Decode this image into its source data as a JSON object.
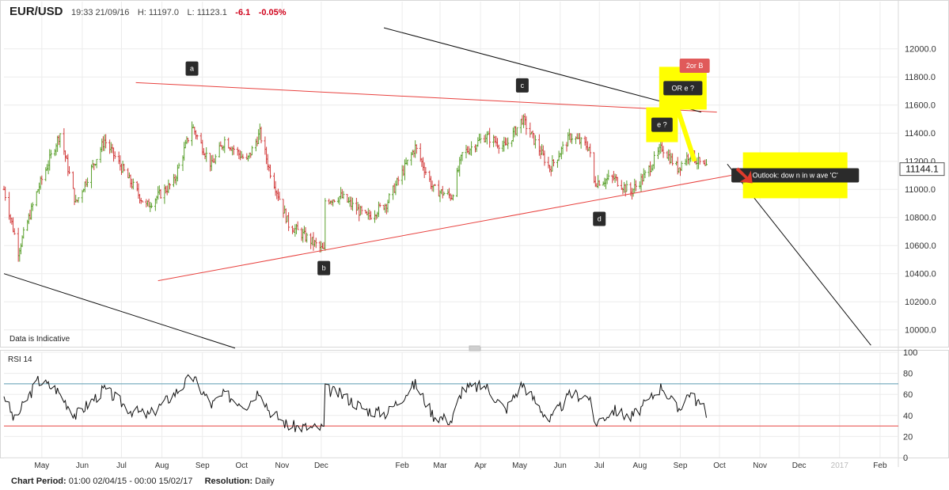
{
  "header": {
    "symbol": "EUR/USD",
    "time": "19:33 21/09/16",
    "high": "H: 11197.0",
    "low": "L: 11123.1",
    "change": "-6.1",
    "change_pct": "-0.05%"
  },
  "footer": {
    "period_label": "Chart Period:",
    "period_value": "01:00 02/04/15 - 00:00 15/02/17",
    "resolution_label": "Resolution:",
    "resolution_value": "Daily"
  },
  "colors": {
    "up": "#5aa02c",
    "down": "#d23c3c",
    "trend_red": "#e8423f",
    "trend_black": "#111111",
    "highlight": "#ffff00",
    "rsi_upper": "#5b9bb0",
    "rsi_lower": "#e8423f",
    "grid": "#ececec"
  },
  "chart_data": [
    {
      "type": "candlestick",
      "notice": "Data is Indicative",
      "last_price": "11144.1",
      "yticks": [
        "10000.0",
        "10200.0",
        "10400.0",
        "10600.0",
        "10800.0",
        "11000.0",
        "11200.0",
        "11400.0",
        "11600.0",
        "11800.0",
        "12000.0"
      ],
      "xticks": [
        "May",
        "Jun",
        "Jul",
        "Aug",
        "Sep",
        "Oct",
        "Nov",
        "Dec",
        "Feb",
        "Mar",
        "Apr",
        "May",
        "Jun",
        "Jul",
        "Aug",
        "Sep",
        "Oct",
        "Nov",
        "Dec",
        "2017",
        "Feb"
      ],
      "ylim": [
        9880,
        12190
      ],
      "x_date_range": [
        "2015-04-02",
        "2017-02-15"
      ],
      "key_levels": [
        {
          "date": "2015-04-13",
          "low": 10520
        },
        {
          "date": "2015-08-24",
          "high": 11710
        },
        {
          "date": "2015-12-03",
          "low": 10530
        },
        {
          "date": "2016-05-03",
          "high": 11610
        },
        {
          "date": "2016-06-24",
          "low": 10900
        },
        {
          "date": "2016-08-18",
          "high": 11350
        },
        {
          "date": "2016-09-21",
          "close": 11144
        }
      ],
      "waypoints": [
        [
          "2015-04-02",
          11000
        ],
        [
          "2015-04-13",
          10560
        ],
        [
          "2015-04-28",
          11000
        ],
        [
          "2015-05-15",
          11400
        ],
        [
          "2015-05-27",
          10900
        ],
        [
          "2015-06-18",
          11350
        ],
        [
          "2015-07-08",
          11050
        ],
        [
          "2015-07-20",
          10880
        ],
        [
          "2015-08-10",
          11050
        ],
        [
          "2015-08-24",
          11450
        ],
        [
          "2015-09-08",
          11170
        ],
        [
          "2015-09-18",
          11350
        ],
        [
          "2015-10-05",
          11200
        ],
        [
          "2015-10-15",
          11400
        ],
        [
          "2015-10-22",
          11150
        ],
        [
          "2015-11-06",
          10750
        ],
        [
          "2015-11-25",
          10620
        ],
        [
          "2015-12-03",
          10560
        ],
        [
          "2015-12-04",
          10920
        ],
        [
          "2015-12-16",
          10950
        ],
        [
          "2016-01-05",
          10800
        ],
        [
          "2016-01-20",
          10900
        ],
        [
          "2016-02-11",
          11300
        ],
        [
          "2016-02-25",
          11000
        ],
        [
          "2016-03-10",
          10950
        ],
        [
          "2016-03-18",
          11250
        ],
        [
          "2016-04-05",
          11380
        ],
        [
          "2016-04-20",
          11300
        ],
        [
          "2016-05-03",
          11500
        ],
        [
          "2016-05-24",
          11150
        ],
        [
          "2016-06-09",
          11380
        ],
        [
          "2016-06-23",
          11300
        ],
        [
          "2016-06-27",
          11050
        ],
        [
          "2016-07-12",
          11080
        ],
        [
          "2016-07-25",
          10980
        ],
        [
          "2016-08-05",
          11100
        ],
        [
          "2016-08-18",
          11300
        ],
        [
          "2016-08-30",
          11150
        ],
        [
          "2016-09-08",
          11250
        ],
        [
          "2016-09-21",
          11144
        ]
      ],
      "annotations": [
        {
          "label": "a",
          "date": "2015-08-24",
          "price": 11860
        },
        {
          "label": "b",
          "date": "2015-12-03",
          "price": 10440
        },
        {
          "label": "c",
          "date": "2016-05-03",
          "price": 11740
        },
        {
          "label": "d",
          "date": "2016-07-01",
          "price": 10790
        },
        {
          "label": "e ?",
          "date": "2016-08-18",
          "price": 11460
        },
        {
          "label": "OR  e ?",
          "date": "2016-09-03",
          "price": 11720
        },
        {
          "label": "2or B",
          "date": "2016-09-12",
          "price": 11880
        },
        {
          "label": "Outlook: dow n in w ave 'C'",
          "date": "2016-11-28",
          "price": 11100
        }
      ],
      "trendlines": [
        {
          "color": "red",
          "from": [
            "2015-07-12",
            11760
          ],
          "to": [
            "2016-09-29",
            11550
          ]
        },
        {
          "color": "red",
          "from": [
            "2015-07-29",
            10350
          ],
          "to": [
            "2016-10-10",
            11100
          ]
        },
        {
          "color": "black",
          "from": [
            "2016-01-18",
            12150
          ],
          "to": [
            "2016-09-17",
            11550
          ]
        },
        {
          "color": "black",
          "from": [
            "2015-04-02",
            10400
          ],
          "to": [
            "2015-09-26",
            9870
          ]
        },
        {
          "color": "black",
          "from": [
            "2016-10-07",
            11180
          ],
          "to": [
            "2017-01-25",
            9890
          ]
        }
      ]
    },
    {
      "type": "line",
      "title": "RSI 14",
      "yticks": [
        "0",
        "20",
        "40",
        "60",
        "80",
        "100"
      ],
      "ylim": [
        0,
        100
      ],
      "levels": [
        70,
        30
      ],
      "waypoints": [
        [
          "2015-04-02",
          60
        ],
        [
          "2015-04-10",
          35
        ],
        [
          "2015-04-28",
          73
        ],
        [
          "2015-05-12",
          65
        ],
        [
          "2015-05-27",
          40
        ],
        [
          "2015-06-18",
          65
        ],
        [
          "2015-07-08",
          45
        ],
        [
          "2015-07-22",
          40
        ],
        [
          "2015-08-10",
          60
        ],
        [
          "2015-08-24",
          77
        ],
        [
          "2015-09-08",
          50
        ],
        [
          "2015-09-18",
          60
        ],
        [
          "2015-10-05",
          50
        ],
        [
          "2015-10-15",
          65
        ],
        [
          "2015-10-22",
          45
        ],
        [
          "2015-11-06",
          30
        ],
        [
          "2015-11-25",
          28
        ],
        [
          "2015-12-03",
          28
        ],
        [
          "2015-12-04",
          65
        ],
        [
          "2015-12-16",
          60
        ],
        [
          "2016-01-05",
          45
        ],
        [
          "2016-01-20",
          42
        ],
        [
          "2016-02-11",
          70
        ],
        [
          "2016-02-25",
          40
        ],
        [
          "2016-03-10",
          35
        ],
        [
          "2016-03-18",
          65
        ],
        [
          "2016-04-05",
          68
        ],
        [
          "2016-04-20",
          45
        ],
        [
          "2016-05-03",
          70
        ],
        [
          "2016-05-24",
          35
        ],
        [
          "2016-06-09",
          60
        ],
        [
          "2016-06-23",
          58
        ],
        [
          "2016-06-27",
          32
        ],
        [
          "2016-07-12",
          45
        ],
        [
          "2016-07-25",
          38
        ],
        [
          "2016-08-05",
          50
        ],
        [
          "2016-08-18",
          68
        ],
        [
          "2016-08-30",
          45
        ],
        [
          "2016-09-08",
          62
        ],
        [
          "2016-09-21",
          43
        ]
      ]
    }
  ]
}
